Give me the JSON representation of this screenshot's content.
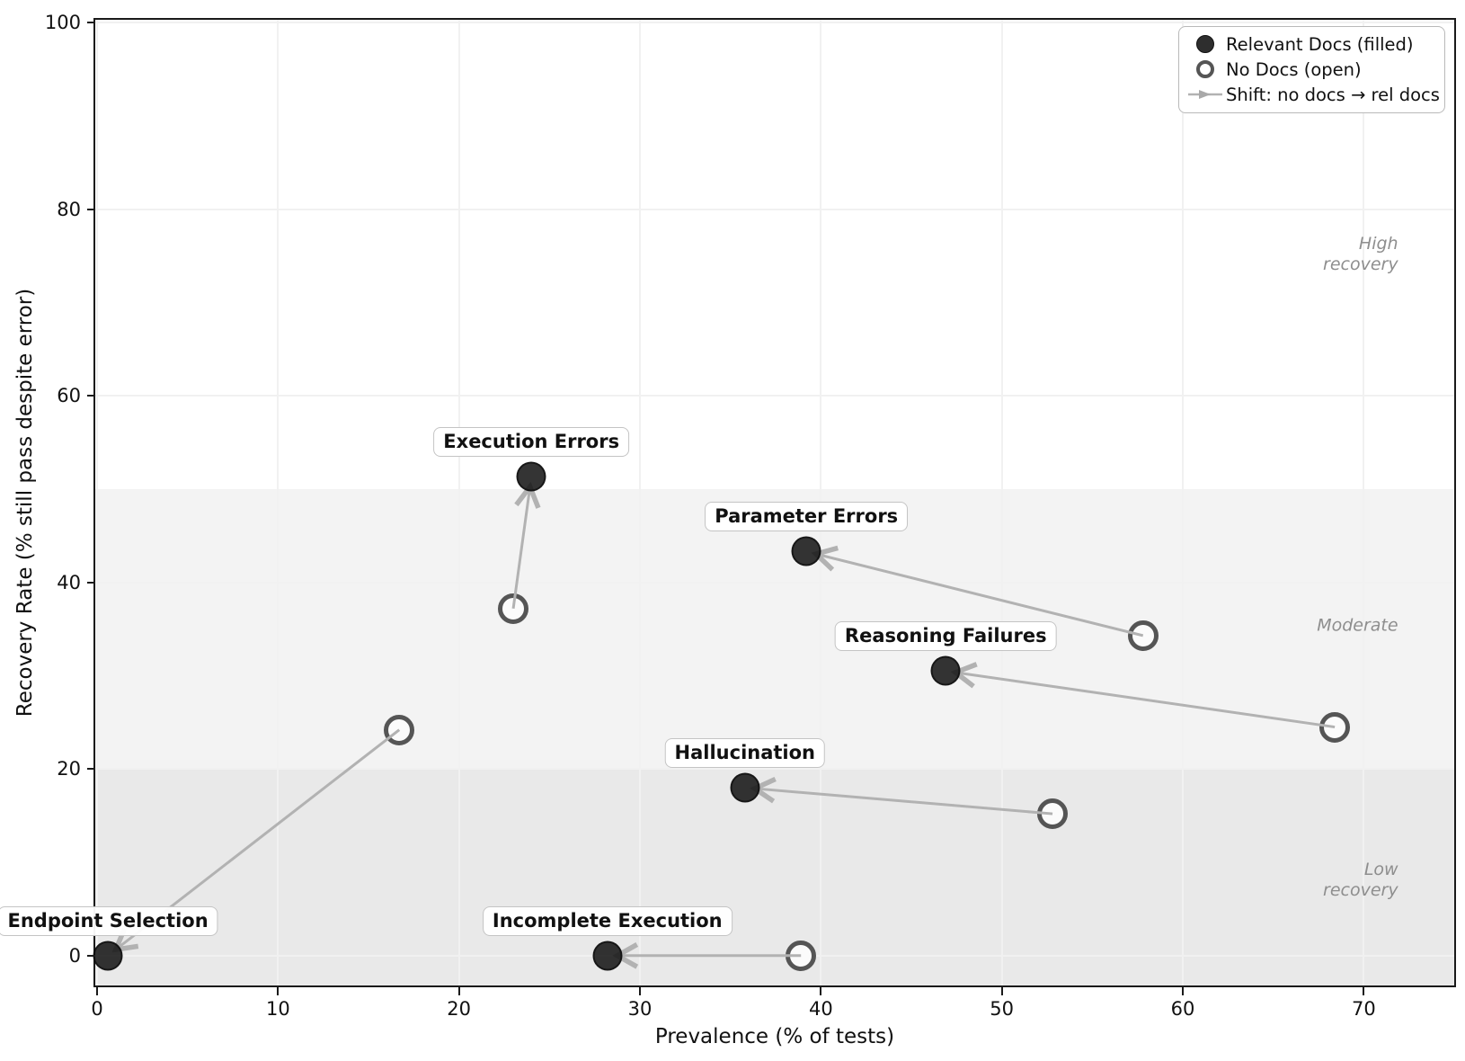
{
  "chart_data": {
    "type": "scatter",
    "xlabel": "Prevalence (% of tests)",
    "ylabel": "Recovery Rate (% still pass despite error)",
    "xlim": [
      -0.1,
      75.0
    ],
    "ylim": [
      -3.2,
      100.3
    ],
    "xticks": [
      0,
      10,
      20,
      30,
      40,
      50,
      60,
      70
    ],
    "yticks": [
      0,
      20,
      40,
      60,
      80,
      100
    ],
    "grid": true,
    "bands": [
      {
        "name": "low-recovery",
        "from": -3.2,
        "to": 20,
        "color": "#e9e9e9"
      },
      {
        "name": "moderate",
        "from": 20,
        "to": 50,
        "color": "#f3f3f3"
      },
      {
        "name": "high-recovery",
        "from": 50,
        "to": 100.3,
        "color": "#ffffff"
      }
    ],
    "zone_annotations": [
      {
        "name": "high-recovery",
        "text": "High\nrecovery",
        "x": 71.9,
        "y": 75.1
      },
      {
        "name": "moderate",
        "text": "Moderate",
        "x": 71.9,
        "y": 35.3
      },
      {
        "name": "low-recovery",
        "text": "Low\nrecovery",
        "x": 71.9,
        "y": 8.1
      }
    ],
    "legend": {
      "items": [
        {
          "marker": "filled-circle",
          "label": "Relevant Docs (filled)"
        },
        {
          "marker": "open-circle",
          "label": "No Docs (open)"
        },
        {
          "marker": "arrow",
          "label": "Shift: no docs → rel docs"
        }
      ]
    },
    "series": [
      {
        "label": "Execution Errors",
        "no_docs": {
          "x": 23.0,
          "y": 37.2
        },
        "rel_docs": {
          "x": 24.0,
          "y": 51.3
        }
      },
      {
        "label": "Parameter Errors",
        "no_docs": {
          "x": 57.8,
          "y": 34.3
        },
        "rel_docs": {
          "x": 39.2,
          "y": 43.3
        }
      },
      {
        "label": "Reasoning Failures",
        "no_docs": {
          "x": 68.4,
          "y": 24.5
        },
        "rel_docs": {
          "x": 46.9,
          "y": 30.5
        }
      },
      {
        "label": "Hallucination",
        "no_docs": {
          "x": 52.8,
          "y": 15.2
        },
        "rel_docs": {
          "x": 35.8,
          "y": 18.0
        }
      },
      {
        "label": "Endpoint Selection",
        "no_docs": {
          "x": 16.7,
          "y": 24.2
        },
        "rel_docs": {
          "x": 0.6,
          "y": 0.0
        }
      },
      {
        "label": "Incomplete Execution",
        "no_docs": {
          "x": 38.9,
          "y": 0.0
        },
        "rel_docs": {
          "x": 28.2,
          "y": 0.0
        }
      }
    ],
    "colors": {
      "filled_marker": "#3a3a3a",
      "open_marker_edge": "#555555",
      "arrow": "#b2b2b2",
      "band_low": "#e9e9e9",
      "band_moderate": "#f3f3f3",
      "annotation_text": "#8e8e8e",
      "spine": "#1a1a1a"
    }
  }
}
